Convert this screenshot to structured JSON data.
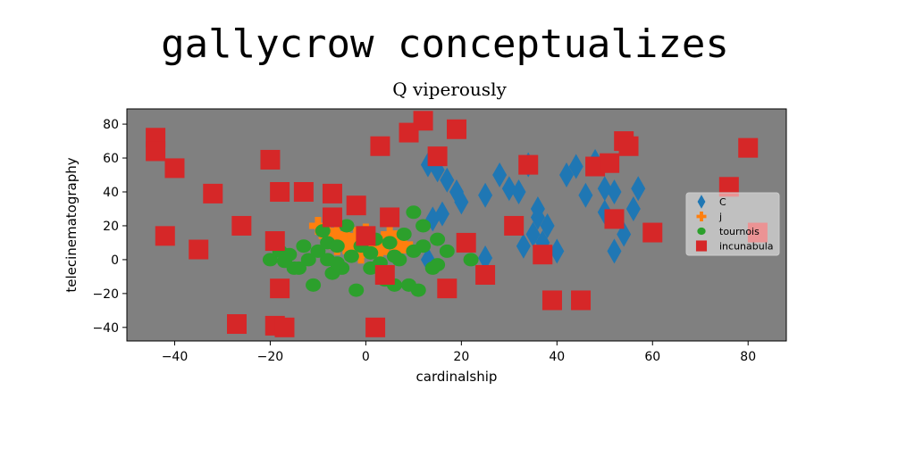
{
  "chart_data": {
    "type": "scatter",
    "title": "gallycrow conceptualizes",
    "subtitle": "Q viperously",
    "xlabel": "cardinalship",
    "ylabel": "telecinematography",
    "xlim": [
      -50,
      88
    ],
    "ylim": [
      -48,
      89
    ],
    "xticks": [
      -40,
      -20,
      0,
      20,
      40,
      60,
      80
    ],
    "yticks": [
      -40,
      -20,
      0,
      20,
      40,
      60,
      80
    ],
    "grid": false,
    "background": "#808080",
    "legend_position": "right",
    "series": [
      {
        "name": "C",
        "marker": "diamond",
        "color": "#1f77b4",
        "points": [
          [
            13,
            56
          ],
          [
            15,
            53
          ],
          [
            17,
            47
          ],
          [
            19,
            40
          ],
          [
            14,
            24
          ],
          [
            16,
            27
          ],
          [
            20,
            34
          ],
          [
            25,
            38
          ],
          [
            28,
            50
          ],
          [
            30,
            42
          ],
          [
            32,
            40
          ],
          [
            34,
            56
          ],
          [
            36,
            30
          ],
          [
            35,
            15
          ],
          [
            37,
            10
          ],
          [
            38,
            20
          ],
          [
            40,
            5
          ],
          [
            42,
            50
          ],
          [
            44,
            55
          ],
          [
            46,
            38
          ],
          [
            48,
            58
          ],
          [
            50,
            42
          ],
          [
            52,
            40
          ],
          [
            50,
            28
          ],
          [
            54,
            15
          ],
          [
            56,
            30
          ],
          [
            57,
            42
          ],
          [
            52,
            5
          ],
          [
            13,
            0
          ],
          [
            25,
            1
          ],
          [
            33,
            8
          ],
          [
            36,
            25
          ]
        ]
      },
      {
        "name": "j",
        "marker": "plus",
        "color": "#ff7f0e",
        "points": [
          [
            -10,
            20
          ],
          [
            -8,
            17
          ],
          [
            -6,
            15
          ],
          [
            -4,
            12
          ],
          [
            -2,
            14
          ],
          [
            0,
            16
          ],
          [
            2,
            10
          ],
          [
            4,
            8
          ],
          [
            6,
            12
          ],
          [
            8,
            9
          ],
          [
            -3,
            5
          ],
          [
            0,
            7
          ],
          [
            3,
            5
          ],
          [
            -6,
            8
          ],
          [
            7,
            7
          ],
          [
            -8,
            14
          ],
          [
            5,
            15
          ],
          [
            -1,
            3
          ]
        ]
      },
      {
        "name": "tournois",
        "marker": "circle",
        "color": "#2ca02c",
        "points": [
          [
            -20,
            0
          ],
          [
            -18,
            5
          ],
          [
            -16,
            3
          ],
          [
            -14,
            -5
          ],
          [
            -12,
            0
          ],
          [
            -10,
            5
          ],
          [
            -8,
            10
          ],
          [
            -6,
            8
          ],
          [
            -5,
            -5
          ],
          [
            -3,
            2
          ],
          [
            -1,
            8
          ],
          [
            1,
            4
          ],
          [
            3,
            -2
          ],
          [
            5,
            10
          ],
          [
            6,
            -15
          ],
          [
            8,
            15
          ],
          [
            10,
            5
          ],
          [
            12,
            8
          ],
          [
            14,
            -5
          ],
          [
            15,
            12
          ],
          [
            17,
            5
          ],
          [
            -11,
            -15
          ],
          [
            -7,
            -8
          ],
          [
            -2,
            -18
          ],
          [
            4,
            -12
          ],
          [
            9,
            -15
          ],
          [
            12,
            20
          ],
          [
            10,
            28
          ],
          [
            -9,
            17
          ],
          [
            -4,
            20
          ],
          [
            22,
            0
          ],
          [
            -17,
            -1
          ],
          [
            -13,
            8
          ],
          [
            -6,
            -2
          ],
          [
            1,
            -5
          ],
          [
            6,
            2
          ],
          [
            11,
            -18
          ],
          [
            15,
            -3
          ],
          [
            -15,
            -5
          ],
          [
            -8,
            0
          ],
          [
            2,
            12
          ],
          [
            7,
            0
          ]
        ]
      },
      {
        "name": "incunabula",
        "marker": "square",
        "color": "#d62728",
        "points": [
          [
            -44,
            72
          ],
          [
            -44,
            64
          ],
          [
            -40,
            54
          ],
          [
            -42,
            14
          ],
          [
            -35,
            6
          ],
          [
            -32,
            39
          ],
          [
            -26,
            20
          ],
          [
            -27,
            -38
          ],
          [
            -20,
            59
          ],
          [
            -19,
            11
          ],
          [
            -18,
            40
          ],
          [
            -18,
            -17
          ],
          [
            -19,
            -39
          ],
          [
            -17,
            -40
          ],
          [
            -13,
            40
          ],
          [
            -7,
            39
          ],
          [
            -7,
            25
          ],
          [
            -2,
            32
          ],
          [
            0,
            14
          ],
          [
            3,
            67
          ],
          [
            4,
            -9
          ],
          [
            5,
            25
          ],
          [
            2,
            -40
          ],
          [
            9,
            75
          ],
          [
            12,
            82
          ],
          [
            15,
            61
          ],
          [
            17,
            -17
          ],
          [
            19,
            77
          ],
          [
            21,
            10
          ],
          [
            25,
            -9
          ],
          [
            31,
            20
          ],
          [
            34,
            56
          ],
          [
            37,
            3
          ],
          [
            39,
            -24
          ],
          [
            45,
            -24
          ],
          [
            48,
            55
          ],
          [
            51,
            57
          ],
          [
            52,
            24
          ],
          [
            54,
            70
          ],
          [
            55,
            67
          ],
          [
            60,
            16
          ],
          [
            76,
            43
          ],
          [
            80,
            66
          ],
          [
            82,
            16
          ]
        ]
      }
    ]
  }
}
